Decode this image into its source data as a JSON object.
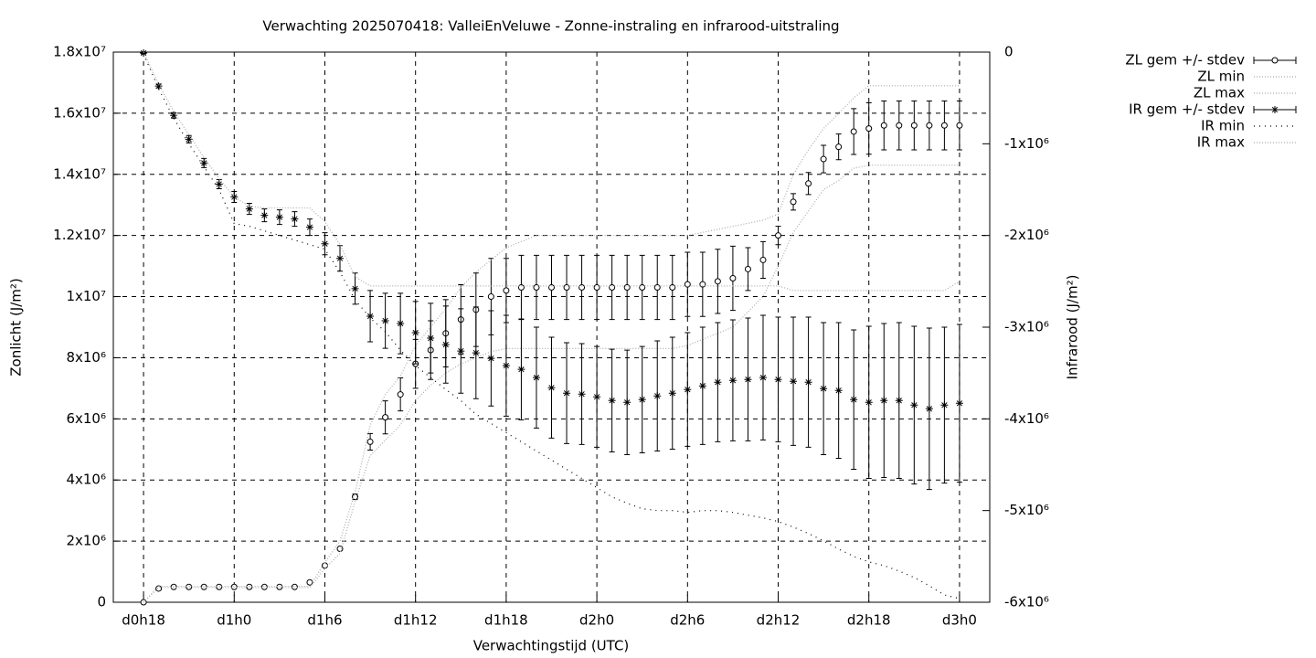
{
  "chart_data": {
    "type": "errorbar-line",
    "title": "Verwachting 2025070418: ValleiEnVeluwe - Zonne-instraling en infrarood-uitstraling",
    "xlabel": "Verwachtingstijd (UTC)",
    "ylabel": "Zonlicht (J/m²)",
    "y2label": "Infrarood (J/m²)",
    "x": [
      18,
      19,
      20,
      21,
      22,
      23,
      24,
      25,
      26,
      27,
      28,
      29,
      30,
      31,
      32,
      33,
      34,
      35,
      36,
      37,
      38,
      39,
      40,
      41,
      42,
      43,
      44,
      45,
      46,
      47,
      48,
      49,
      50,
      51,
      52,
      53,
      54,
      55,
      56,
      57,
      58,
      59,
      60,
      61,
      62,
      63,
      64,
      65,
      66,
      67,
      68,
      69,
      70,
      71,
      72
    ],
    "xlim": [
      16,
      74
    ],
    "xticks": [
      {
        "value": 18,
        "label": "d0h18"
      },
      {
        "value": 24,
        "label": "d1h0"
      },
      {
        "value": 30,
        "label": "d1h6"
      },
      {
        "value": 36,
        "label": "d1h12"
      },
      {
        "value": 42,
        "label": "d1h18"
      },
      {
        "value": 48,
        "label": "d2h0"
      },
      {
        "value": 54,
        "label": "d2h6"
      },
      {
        "value": 60,
        "label": "d2h12"
      },
      {
        "value": 66,
        "label": "d2h18"
      },
      {
        "value": 72,
        "label": "d3h0"
      }
    ],
    "ylim": [
      0,
      18000000
    ],
    "yticks": [
      0,
      {
        "value": 2000000,
        "label": "2x10⁶"
      },
      {
        "value": 4000000,
        "label": "4x10⁶"
      },
      {
        "value": 6000000,
        "label": "6x10⁶"
      },
      {
        "value": 8000000,
        "label": "8x10⁶"
      },
      {
        "value": 10000000,
        "label": "1x10⁷"
      },
      {
        "value": 12000000,
        "label": "1.2x10⁷"
      },
      {
        "value": 14000000,
        "label": "1.4x10⁷"
      },
      {
        "value": 16000000,
        "label": "1.6x10⁷"
      },
      {
        "value": 18000000,
        "label": "1.8x10⁷"
      }
    ],
    "y2lim": [
      -6000000,
      0
    ],
    "y2ticks": [
      {
        "value": -6000000,
        "label": "-6x10⁶"
      },
      {
        "value": -5000000,
        "label": "-5x10⁶"
      },
      {
        "value": -4000000,
        "label": "-4x10⁶"
      },
      {
        "value": -3000000,
        "label": "-3x10⁶"
      },
      {
        "value": -2000000,
        "label": "-2x10⁶"
      },
      {
        "value": -1000000,
        "label": "-1x10⁶"
      },
      0
    ],
    "grid": true,
    "legend": "outside-top-right",
    "series": [
      {
        "name": "ZL gem +/- stdev",
        "color": "#000000",
        "marker": "circle",
        "axis": "y",
        "values": [
          0,
          450000,
          500000,
          500000,
          500000,
          500000,
          500000,
          500000,
          500000,
          500000,
          500000,
          650000,
          1200000,
          1750000,
          3450000,
          5250000,
          6050000,
          6800000,
          7800000,
          8250000,
          8800000,
          9250000,
          9570000,
          10000000,
          10200000,
          10300000,
          10300000,
          10300000,
          10300000,
          10300000,
          10300000,
          10300000,
          10300000,
          10300000,
          10300000,
          10300000,
          10400000,
          10400000,
          10500000,
          10600000,
          10900000,
          11200000,
          12000000,
          13100000,
          13700000,
          14500000,
          14900000,
          15400000,
          15500000,
          15600000,
          15600000,
          15600000,
          15600000,
          15600000,
          15600000
        ],
        "errors": [
          30000,
          30000,
          30000,
          30000,
          30000,
          30000,
          30000,
          30000,
          30000,
          30000,
          30000,
          30000,
          30000,
          30000,
          90000,
          270000,
          540000,
          540000,
          800000,
          960000,
          1100000,
          1140000,
          1200000,
          1250000,
          1050000,
          1050000,
          1050000,
          1050000,
          1050000,
          1050000,
          1050000,
          1050000,
          1050000,
          1050000,
          1050000,
          1050000,
          1050000,
          1050000,
          1050000,
          1050000,
          700000,
          600000,
          300000,
          270000,
          360000,
          450000,
          420000,
          750000,
          840000,
          800000,
          800000,
          800000,
          800000,
          800000,
          800000
        ]
      },
      {
        "name": "ZL min",
        "color": "#aaaaaa",
        "dash": "1 2",
        "axis": "y",
        "values": [
          0,
          480000,
          480000,
          480000,
          480000,
          480000,
          480000,
          480000,
          480000,
          480000,
          480000,
          480000,
          1100000,
          1600000,
          3300000,
          4800000,
          5300000,
          5800000,
          6600000,
          7100000,
          7500000,
          7800000,
          8000000,
          8200000,
          8300000,
          8300000,
          8300000,
          8300000,
          8300000,
          8300000,
          8300000,
          8300000,
          8300000,
          8300000,
          8300000,
          8300000,
          8400000,
          8600000,
          8800000,
          9000000,
          9500000,
          10000000,
          11000000,
          12100000,
          12800000,
          13500000,
          13800000,
          14200000,
          14300000,
          14300000,
          14300000,
          14300000,
          14300000,
          14300000,
          14300000
        ]
      },
      {
        "name": "ZL max",
        "color": "#aaaaaa",
        "dash": "1 2",
        "axis": "y",
        "values": [
          0,
          520000,
          520000,
          520000,
          520000,
          520000,
          520000,
          520000,
          520000,
          520000,
          520000,
          520000,
          1300000,
          2000000,
          3600000,
          5800000,
          6800000,
          7400000,
          8400000,
          9000000,
          9600000,
          10300000,
          10800000,
          11200000,
          11600000,
          11800000,
          12000000,
          12000000,
          12000000,
          12000000,
          12000000,
          12000000,
          12000000,
          12000000,
          12000000,
          12000000,
          12000000,
          12100000,
          12200000,
          12300000,
          12400000,
          12500000,
          12700000,
          14000000,
          14800000,
          15500000,
          16000000,
          16500000,
          16900000,
          16900000,
          16900000,
          16900000,
          16900000,
          16900000,
          16900000
        ]
      },
      {
        "name": "IR gem +/- stdev",
        "color": "#000000",
        "marker": "star",
        "axis": "y2",
        "values": [
          -10000,
          -370000,
          -690000,
          -950000,
          -1210000,
          -1440000,
          -1580000,
          -1710000,
          -1780000,
          -1800000,
          -1820000,
          -1910000,
          -2090000,
          -2250000,
          -2580000,
          -2880000,
          -2930000,
          -2960000,
          -3060000,
          -3120000,
          -3190000,
          -3260000,
          -3280000,
          -3340000,
          -3420000,
          -3460000,
          -3550000,
          -3660000,
          -3720000,
          -3730000,
          -3760000,
          -3800000,
          -3820000,
          -3790000,
          -3750000,
          -3720000,
          -3680000,
          -3640000,
          -3600000,
          -3580000,
          -3570000,
          -3550000,
          -3570000,
          -3590000,
          -3600000,
          -3670000,
          -3690000,
          -3790000,
          -3820000,
          -3800000,
          -3800000,
          -3850000,
          -3890000,
          -3850000,
          -3830000
        ],
        "errors": [
          10000,
          20000,
          30000,
          40000,
          50000,
          50000,
          60000,
          60000,
          70000,
          80000,
          80000,
          90000,
          120000,
          140000,
          170000,
          280000,
          300000,
          330000,
          340000,
          380000,
          420000,
          460000,
          500000,
          520000,
          550000,
          550000,
          550000,
          550000,
          550000,
          550000,
          550000,
          560000,
          570000,
          580000,
          600000,
          610000,
          620000,
          640000,
          650000,
          660000,
          670000,
          680000,
          680000,
          700000,
          710000,
          720000,
          740000,
          760000,
          830000,
          840000,
          850000,
          860000,
          880000,
          850000,
          860000
        ]
      },
      {
        "name": "IR min",
        "color": "#000000",
        "dash": "1 5",
        "axis": "y2",
        "values": [
          -20000,
          -400000,
          -720000,
          -1000000,
          -1250000,
          -1500000,
          -1870000,
          -1900000,
          -1950000,
          -2000000,
          -2050000,
          -2100000,
          -2150000,
          -2400000,
          -2700000,
          -2900000,
          -3050000,
          -3250000,
          -3420000,
          -3550000,
          -3680000,
          -3800000,
          -3950000,
          -4050000,
          -4150000,
          -4250000,
          -4350000,
          -4450000,
          -4550000,
          -4650000,
          -4750000,
          -4850000,
          -4920000,
          -4980000,
          -5000000,
          -5000000,
          -5020000,
          -5000000,
          -5000000,
          -5020000,
          -5050000,
          -5080000,
          -5120000,
          -5180000,
          -5250000,
          -5330000,
          -5420000,
          -5500000,
          -5560000,
          -5600000,
          -5660000,
          -5730000,
          -5820000,
          -5920000,
          -5960000
        ]
      },
      {
        "name": "IR max",
        "color": "#aaaaaa",
        "dash": "1 2",
        "axis": "y2",
        "values": [
          0,
          -350000,
          -650000,
          -900000,
          -1150000,
          -1380000,
          -1580000,
          -1680000,
          -1700000,
          -1700000,
          -1700000,
          -1700000,
          -1850000,
          -2100000,
          -2450000,
          -2550000,
          -2550000,
          -2550000,
          -2550000,
          -2550000,
          -2550000,
          -2550000,
          -2550000,
          -2550000,
          -2550000,
          -2550000,
          -2550000,
          -2550000,
          -2550000,
          -2550000,
          -2550000,
          -2550000,
          -2550000,
          -2550000,
          -2550000,
          -2550000,
          -2550000,
          -2550000,
          -2550000,
          -2550000,
          -2550000,
          -2550000,
          -2550000,
          -2600000,
          -2600000,
          -2600000,
          -2600000,
          -2600000,
          -2600000,
          -2600000,
          -2600000,
          -2600000,
          -2600000,
          -2600000,
          -2500000
        ]
      }
    ]
  }
}
